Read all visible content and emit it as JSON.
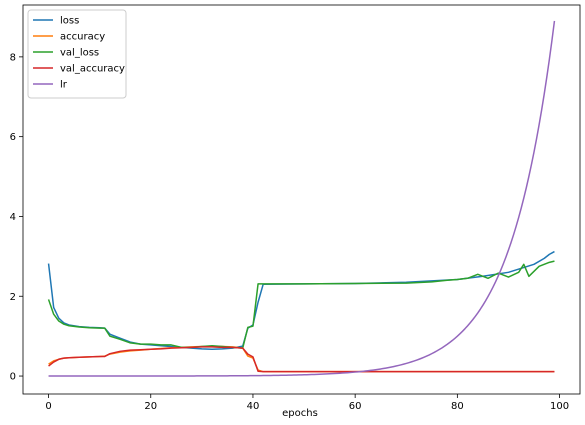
{
  "chart_data": {
    "type": "line",
    "xlabel": "epochs",
    "ylabel": "",
    "xlim": [
      -5,
      104
    ],
    "ylim": [
      -0.45,
      9.3
    ],
    "xticks": [
      0,
      20,
      40,
      60,
      80,
      100
    ],
    "yticks": [
      0,
      2,
      4,
      6,
      8
    ],
    "tick_labels_x": [
      "0",
      "20",
      "40",
      "60",
      "80",
      "100"
    ],
    "tick_labels_y": [
      "0",
      "2",
      "4",
      "6",
      "8"
    ],
    "grid": false,
    "legend_position": "top-left",
    "series": [
      {
        "name": "loss",
        "color": "#1f77b4",
        "x": [
          0,
          1,
          2,
          3,
          4,
          6,
          8,
          10,
          11,
          12,
          14,
          16,
          18,
          20,
          22,
          24,
          26,
          28,
          30,
          32,
          34,
          36,
          38,
          39,
          40,
          41,
          42,
          50,
          60,
          70,
          80,
          85,
          90,
          95,
          97,
          98,
          99
        ],
        "y": [
          2.82,
          1.72,
          1.45,
          1.33,
          1.28,
          1.24,
          1.22,
          1.21,
          1.2,
          1.05,
          0.95,
          0.85,
          0.8,
          0.78,
          0.76,
          0.74,
          0.72,
          0.7,
          0.68,
          0.67,
          0.68,
          0.7,
          0.75,
          1.2,
          1.28,
          1.85,
          2.3,
          2.31,
          2.32,
          2.35,
          2.42,
          2.5,
          2.6,
          2.8,
          2.95,
          3.05,
          3.12
        ]
      },
      {
        "name": "accuracy",
        "color": "#ff7f0e",
        "x": [
          0,
          1,
          2,
          3,
          4,
          6,
          8,
          10,
          11,
          12,
          14,
          16,
          18,
          20,
          22,
          24,
          26,
          28,
          30,
          32,
          34,
          36,
          38,
          39,
          40,
          41,
          42,
          50,
          60,
          70,
          80,
          90,
          99
        ],
        "y": [
          0.3,
          0.38,
          0.42,
          0.45,
          0.46,
          0.47,
          0.48,
          0.49,
          0.5,
          0.55,
          0.6,
          0.63,
          0.65,
          0.67,
          0.69,
          0.71,
          0.72,
          0.73,
          0.74,
          0.74,
          0.74,
          0.73,
          0.7,
          0.5,
          0.45,
          0.15,
          0.11,
          0.11,
          0.11,
          0.11,
          0.11,
          0.11,
          0.11
        ]
      },
      {
        "name": "val_loss",
        "color": "#2ca02c",
        "x": [
          0,
          1,
          2,
          3,
          4,
          6,
          8,
          10,
          11,
          12,
          14,
          16,
          18,
          20,
          22,
          24,
          26,
          28,
          30,
          32,
          34,
          36,
          38,
          39,
          40,
          41,
          42,
          50,
          60,
          70,
          75,
          78,
          80,
          82,
          84,
          86,
          88,
          90,
          92,
          93,
          94,
          96,
          98,
          99
        ],
        "y": [
          1.92,
          1.55,
          1.38,
          1.3,
          1.26,
          1.23,
          1.21,
          1.2,
          1.2,
          1.0,
          0.92,
          0.83,
          0.8,
          0.8,
          0.78,
          0.78,
          0.72,
          0.72,
          0.74,
          0.76,
          0.74,
          0.72,
          0.7,
          1.22,
          1.25,
          2.31,
          2.31,
          2.31,
          2.32,
          2.33,
          2.36,
          2.4,
          2.42,
          2.45,
          2.55,
          2.45,
          2.58,
          2.48,
          2.6,
          2.8,
          2.5,
          2.75,
          2.85,
          2.88
        ]
      },
      {
        "name": "val_accuracy",
        "color": "#d62728",
        "x": [
          0,
          1,
          2,
          3,
          4,
          6,
          8,
          10,
          11,
          12,
          14,
          16,
          18,
          20,
          22,
          24,
          26,
          28,
          30,
          32,
          34,
          36,
          38,
          39,
          40,
          41,
          42,
          50,
          60,
          70,
          80,
          90,
          99
        ],
        "y": [
          0.25,
          0.35,
          0.42,
          0.45,
          0.46,
          0.47,
          0.48,
          0.49,
          0.49,
          0.56,
          0.62,
          0.65,
          0.66,
          0.67,
          0.68,
          0.7,
          0.71,
          0.72,
          0.73,
          0.73,
          0.72,
          0.72,
          0.7,
          0.55,
          0.48,
          0.12,
          0.11,
          0.11,
          0.11,
          0.11,
          0.11,
          0.11,
          0.11
        ]
      },
      {
        "name": "lr",
        "color": "#9467bd",
        "function": "exp",
        "x_start": 0,
        "x_end": 99,
        "y_start": 0.0001,
        "y_end": 8.9
      }
    ]
  }
}
